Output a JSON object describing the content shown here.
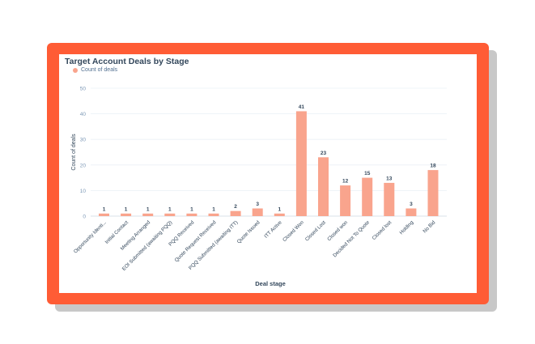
{
  "chart_data": {
    "type": "bar",
    "title": "Target Account Deals by Stage",
    "xlabel": "Deal stage",
    "ylabel": "Count of deals",
    "ylim": [
      0,
      50
    ],
    "yticks": [
      0,
      10,
      20,
      30,
      40,
      50
    ],
    "grid": true,
    "legend": "top-left",
    "series": [
      {
        "name": "Count of deals",
        "color": "#f9a48d",
        "values": [
          1,
          1,
          1,
          1,
          1,
          1,
          2,
          3,
          1,
          41,
          23,
          12,
          15,
          13,
          3,
          18
        ]
      }
    ],
    "categories": [
      "Opportunity Identi...",
      "Initial Contact",
      "Meeting Arranged",
      "EOI Submitted (awaiting PQQ)",
      "PQQ Received",
      "Quote Request Received",
      "PQQ Submitted (awaiting ITT)",
      "Quote Issued",
      "ITT Active",
      "Closed Won",
      "Closed Lost",
      "Closed won",
      "Decided Not To Quote",
      "Closed lost",
      "Holding",
      "No Bid"
    ]
  }
}
